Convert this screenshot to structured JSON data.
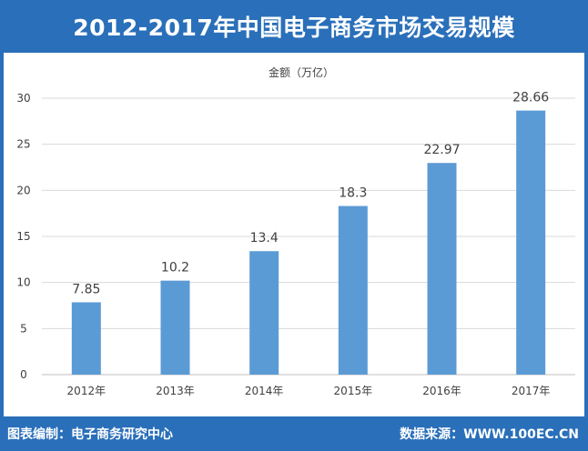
{
  "title": "2012-2017年中国电子商务市场交易规模",
  "footer": {
    "compiler": "图表编制：电子商务研究中心",
    "source": "数据来源：WWW.100EC.CN"
  },
  "colors": {
    "frame": "#2a6fb9",
    "bar": "#5b9bd5",
    "grid": "#d9d9d9"
  },
  "chart_data": {
    "type": "bar",
    "ylabel": "金额（万亿）",
    "categories": [
      "2012年",
      "2013年",
      "2014年",
      "2015年",
      "2016年",
      "2017年"
    ],
    "values": [
      7.85,
      10.2,
      13.4,
      18.3,
      22.97,
      28.66
    ],
    "value_labels": [
      "7.85",
      "10.2",
      "13.4",
      "18.3",
      "22.97",
      "28.66"
    ],
    "ylim": [
      0,
      30
    ],
    "yticks": [
      0,
      5,
      10,
      15,
      20,
      25,
      30
    ],
    "grid": true,
    "legend": "none"
  }
}
